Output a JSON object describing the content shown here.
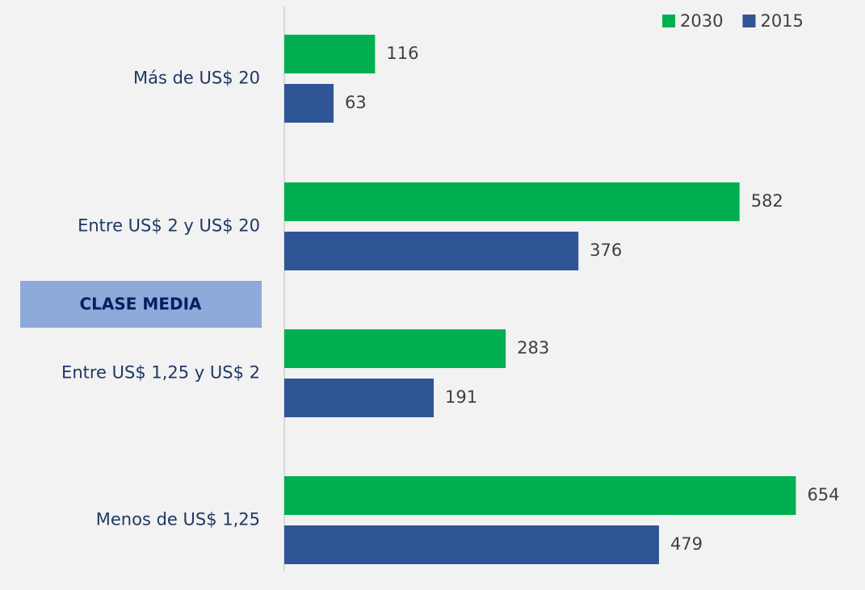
{
  "chart_data": {
    "type": "bar",
    "orientation": "horizontal",
    "categories": [
      "Más de US$ 20",
      "Entre US$ 2 y US$ 20",
      "Entre US$ 1,25 y US$ 2",
      "Menos de US$ 1,25"
    ],
    "series": [
      {
        "name": "2030",
        "color": "#00b050",
        "values": [
          116,
          582,
          283,
          654
        ]
      },
      {
        "name": "2015",
        "color": "#2f5597",
        "values": [
          63,
          376,
          191,
          479
        ]
      }
    ],
    "xlim": [
      0,
      700
    ],
    "annotation": "CLASE MEDIA",
    "legend": "top-right"
  }
}
